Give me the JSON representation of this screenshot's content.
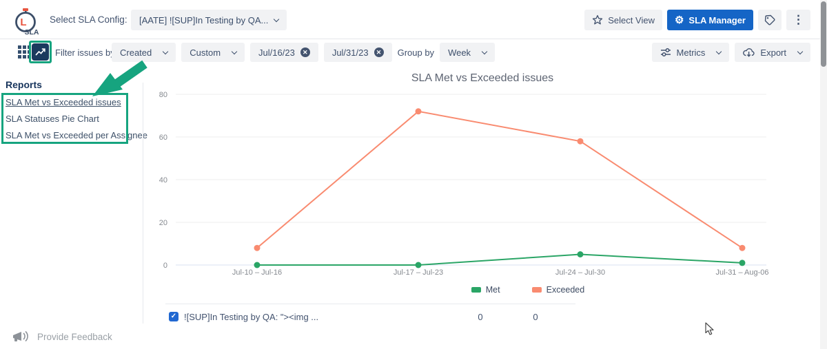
{
  "header": {
    "brand": {
      "name": "SLA",
      "letter": "L"
    },
    "config_label": "Select SLA Config:",
    "config_value": "[AATE] ![SUP]In Testing by QA...",
    "select_view": "Select View",
    "sla_manager": "SLA Manager"
  },
  "toolbar": {
    "filter_label": "Filter issues by:",
    "field_value": "Created",
    "range_type": "Custom",
    "date_from": "Jul/16/23",
    "date_to": "Jul/31/23",
    "group_by_label": "Group by",
    "group_by_value": "Week",
    "metrics": "Metrics",
    "export": "Export"
  },
  "sidebar": {
    "title": "Reports",
    "items": [
      {
        "label": "SLA Met vs Exceeded issues",
        "active": true
      },
      {
        "label": "SLA Statuses Pie Chart",
        "active": false
      },
      {
        "label": "SLA Met vs Exceeded per Assignee",
        "active": false
      }
    ]
  },
  "chart_data": {
    "type": "line",
    "title": "SLA Met vs Exceeded issues",
    "categories": [
      "Jul-10 – Jul-16",
      "Jul-17 – Jul-23",
      "Jul-24 – Jul-30",
      "Jul-31 – Aug-06"
    ],
    "series": [
      {
        "name": "Met",
        "color": "#2aa566",
        "values": [
          0,
          0,
          5,
          1
        ]
      },
      {
        "name": "Exceeded",
        "color": "#f98b70",
        "values": [
          8,
          72,
          58,
          8
        ]
      }
    ],
    "yticks": [
      0,
      20,
      40,
      60,
      80
    ],
    "ylim": [
      0,
      80
    ],
    "grid": true,
    "legend_position": "bottom",
    "xlabel": "",
    "ylabel": ""
  },
  "table": {
    "rows": [
      {
        "checked": true,
        "label": "![SUP]In Testing by QA: \"><img ...",
        "met": "0",
        "exceeded": "0"
      }
    ]
  },
  "footer": {
    "feedback": "Provide Feedback"
  },
  "icons": {
    "gear": "⚙",
    "kebab": "⋮",
    "check": "✓",
    "clear": "✕"
  },
  "colors": {
    "annotation": "#16a47f",
    "primary_button": "#1565c6",
    "met": "#2aa566",
    "exceeded": "#f98b70"
  }
}
